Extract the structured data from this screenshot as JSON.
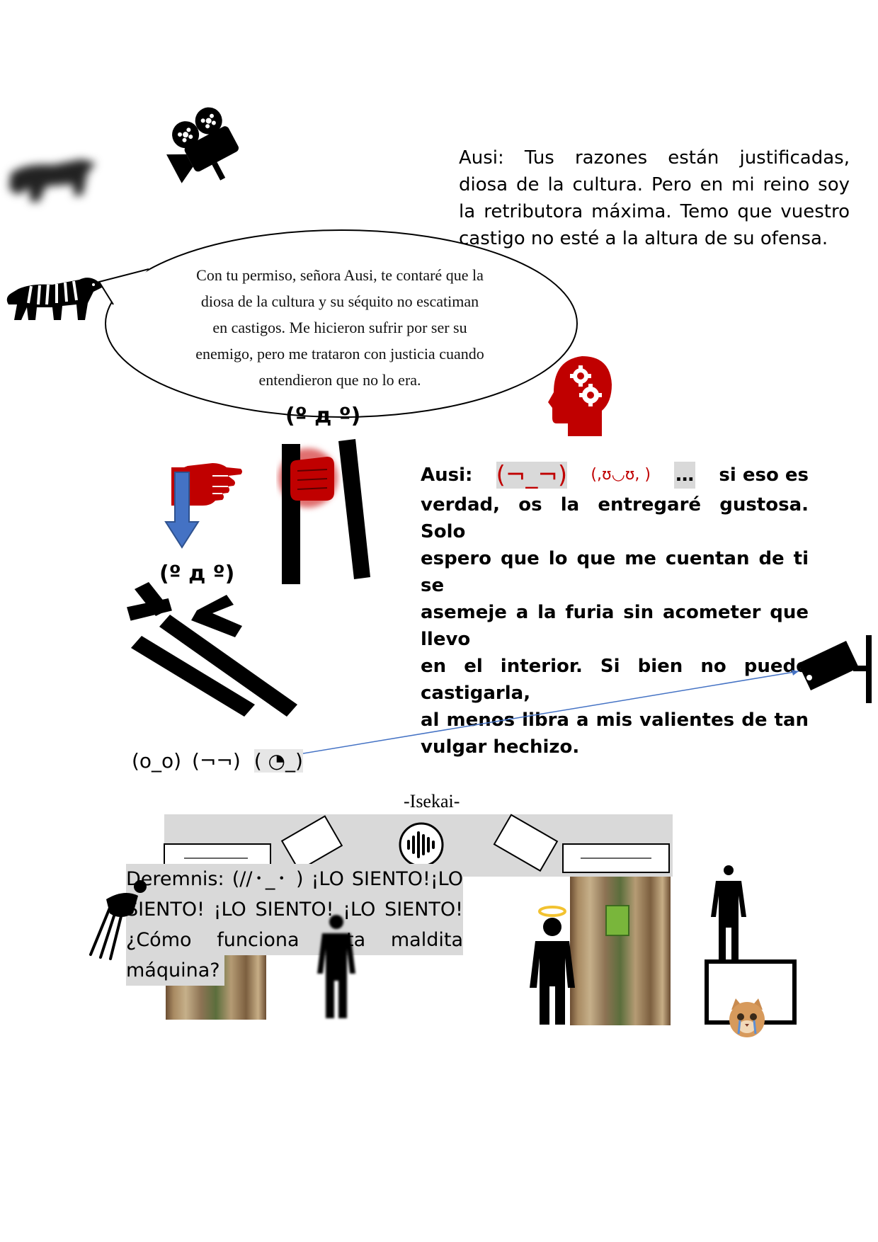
{
  "ausi_speech_1": {
    "lines": [
      "Ausi: Tus razones están justificadas,",
      "diosa de la cultura. Pero en mi reino soy",
      "la retributora máxima. Temo que vuestro",
      "castigo no esté a la altura de su ofensa."
    ]
  },
  "tiger_bubble": {
    "lines": [
      "Con tu permiso, señora Ausi, te contaré que la",
      "diosa de la cultura y su séquito no escatiman",
      "en castigos. Me hicieron sufrir por ser su",
      "enemigo, pero me trataron con justicia cuando",
      "entendieron que no lo era."
    ]
  },
  "kaomoji": {
    "shocked_top": "(º д º)",
    "shocked_left": "(º д º)",
    "bottom_1": "(o_o)",
    "bottom_2": "(¬¬)",
    "bottom_3": "( ◔_)"
  },
  "ausi_speech_2": {
    "speaker": "Ausi:",
    "face_1": "(¬_¬)",
    "face_2": "(,ʊ◡ʊ, )",
    "ellipsis": "…",
    "line1_end": "si eso es",
    "lines": [
      "verdad, os la entregaré gustosa. Solo",
      "espero que lo que me cuentan de ti se",
      "asemeje a la furia sin acometer que llevo",
      "en el interior. Si bien no puedo castigarla,",
      "al menos libra a mis valientes de tan",
      "vulgar hechizo."
    ]
  },
  "isekai_title": "-Isekai-",
  "deremnis_speech": {
    "lines": [
      "Deremnis:   (//･_･ ) ¡LO SIENTO!¡LO",
      "SIENTO! ¡LO SIENTO! ¡LO SIENTO!",
      "¿Cómo funciona esta maldita",
      "máquina?"
    ]
  },
  "icons": {
    "blurred_animal": "animal-silhouette-icon",
    "camera": "movie-camera-icon",
    "tiger": "tiger-icon",
    "head": "head-gears-icon",
    "hand": "pointing-hand-icon",
    "arrow": "down-arrow-icon",
    "fist": "fist-icon",
    "cctv": "security-camera-icon",
    "audio": "audio-wave-icon",
    "person": "person-icon",
    "angel": "angel-person-icon",
    "frame": "picture-frame-icon",
    "cat": "crying-cat-icon"
  },
  "colors": {
    "accent_red": "#c00000",
    "highlight_gray": "#d9d9d9",
    "arrow_blue": "#4472c4"
  }
}
